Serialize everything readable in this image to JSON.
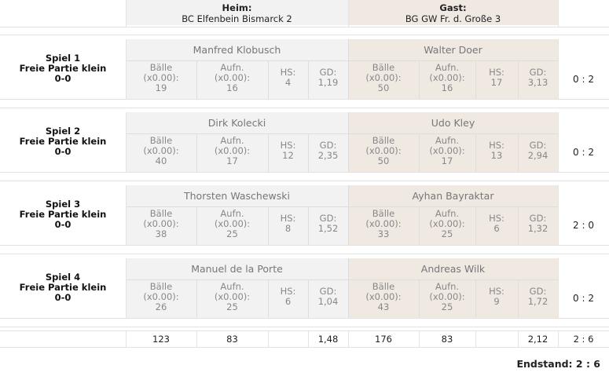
{
  "header": {
    "home_label": "Heim:",
    "home_team": "BC Elfenbein Bismarck 2",
    "guest_label": "Gast:",
    "guest_team": "BG GW Fr. d. Große 3"
  },
  "stat_labels": {
    "balls": "Bälle",
    "balls_sub": "(x0.00):",
    "innings": "Aufn.",
    "innings_sub": "(x0.00):",
    "hs": "HS:",
    "gd": "GD:"
  },
  "games": [
    {
      "title": "Spiel 1",
      "discipline": "Freie Partie klein",
      "score": "0-0",
      "home": {
        "name": "Manfred Klobusch",
        "balls": "19",
        "innings": "16",
        "hs": "4",
        "gd": "1,19"
      },
      "guest": {
        "name": "Walter Doer",
        "balls": "50",
        "innings": "16",
        "hs": "17",
        "gd": "3,13"
      },
      "result": "0 : 2"
    },
    {
      "title": "Spiel 2",
      "discipline": "Freie Partie klein",
      "score": "0-0",
      "home": {
        "name": "Dirk Kolecki",
        "balls": "40",
        "innings": "17",
        "hs": "12",
        "gd": "2,35"
      },
      "guest": {
        "name": "Udo Kley",
        "balls": "50",
        "innings": "17",
        "hs": "13",
        "gd": "2,94"
      },
      "result": "0 : 2"
    },
    {
      "title": "Spiel 3",
      "discipline": "Freie Partie klein",
      "score": "0-0",
      "home": {
        "name": "Thorsten Waschewski",
        "balls": "38",
        "innings": "25",
        "hs": "8",
        "gd": "1,52"
      },
      "guest": {
        "name": "Ayhan Bayraktar",
        "balls": "33",
        "innings": "25",
        "hs": "6",
        "gd": "1,32"
      },
      "result": "2 : 0"
    },
    {
      "title": "Spiel 4",
      "discipline": "Freie Partie klein",
      "score": "0-0",
      "home": {
        "name": "Manuel de la Porte",
        "balls": "26",
        "innings": "25",
        "hs": "6",
        "gd": "1,04"
      },
      "guest": {
        "name": "Andreas Wilk",
        "balls": "43",
        "innings": "25",
        "hs": "9",
        "gd": "1,72"
      },
      "result": "0 : 2"
    }
  ],
  "totals": {
    "home_balls": "123",
    "home_innings": "83",
    "home_gd": "1,48",
    "guest_balls": "176",
    "guest_innings": "83",
    "guest_gd": "2,12",
    "result": "2 : 6"
  },
  "final": "Endstand: 2 : 6"
}
